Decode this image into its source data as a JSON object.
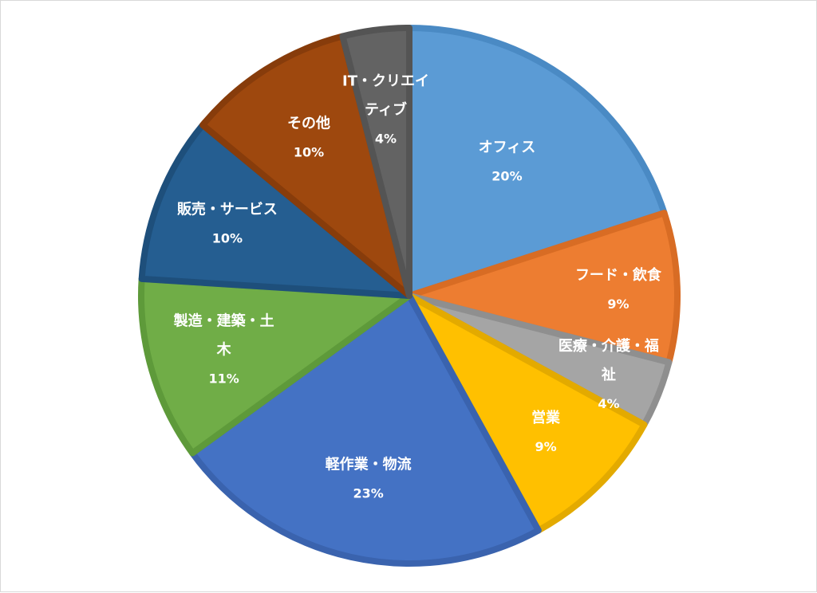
{
  "chart_data": {
    "type": "pie",
    "title": "",
    "start_angle_deg": 0,
    "direction": "clockwise",
    "slices": [
      {
        "label_lines": [
          "オフィス"
        ],
        "percent_label": "20%",
        "value": 20,
        "fill": "#5B9BD5",
        "stroke": "#4A8AC4"
      },
      {
        "label_lines": [
          "フード・飲食"
        ],
        "percent_label": "9%",
        "value": 9,
        "fill": "#ED7D31",
        "stroke": "#D86C24"
      },
      {
        "label_lines": [
          "医療・介護・福",
          "祉"
        ],
        "percent_label": "4%",
        "value": 4,
        "fill": "#A5A5A5",
        "stroke": "#8F8F8F"
      },
      {
        "label_lines": [
          "営業"
        ],
        "percent_label": "9%",
        "value": 9,
        "fill": "#FFC000",
        "stroke": "#E3AA00"
      },
      {
        "label_lines": [
          "軽作業・物流"
        ],
        "percent_label": "23%",
        "value": 23,
        "fill": "#4472C4",
        "stroke": "#3A63AE"
      },
      {
        "label_lines": [
          "製造・建築・土",
          "木"
        ],
        "percent_label": "11%",
        "value": 11,
        "fill": "#70AD47",
        "stroke": "#5E9A3A"
      },
      {
        "label_lines": [
          "販売・サービス"
        ],
        "percent_label": "10%",
        "value": 10,
        "fill": "#255E91",
        "stroke": "#1E4F7B"
      },
      {
        "label_lines": [
          "その他"
        ],
        "percent_label": "10%",
        "value": 10,
        "fill": "#9E480E",
        "stroke": "#873C0B"
      },
      {
        "label_lines": [
          "IT・クリエイ",
          "ティブ"
        ],
        "percent_label": "4%",
        "value": 4,
        "fill": "#636363",
        "stroke": "#545454"
      }
    ]
  }
}
